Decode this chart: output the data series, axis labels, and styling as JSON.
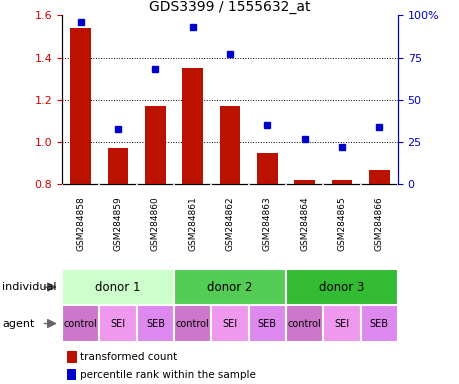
{
  "title": "GDS3399 / 1555632_at",
  "samples": [
    "GSM284858",
    "GSM284859",
    "GSM284860",
    "GSM284861",
    "GSM284862",
    "GSM284863",
    "GSM284864",
    "GSM284865",
    "GSM284866"
  ],
  "bar_values": [
    1.54,
    0.97,
    1.17,
    1.35,
    1.17,
    0.95,
    0.82,
    0.82,
    0.87
  ],
  "dot_values": [
    96,
    33,
    68,
    93,
    77,
    35,
    27,
    22,
    34
  ],
  "bar_color": "#bb1100",
  "dot_color": "#0000cc",
  "bar_baseline": 0.8,
  "ylim_left": [
    0.8,
    1.6
  ],
  "ylim_right": [
    0,
    100
  ],
  "yticks_left": [
    0.8,
    1.0,
    1.2,
    1.4,
    1.6
  ],
  "yticks_right": [
    0,
    25,
    50,
    75,
    100
  ],
  "ytick_labels_right": [
    "0",
    "25",
    "50",
    "75",
    "100%"
  ],
  "grid_values": [
    1.0,
    1.2,
    1.4
  ],
  "individuals": [
    {
      "label": "donor 1",
      "start": 0,
      "end": 3,
      "color": "#ccffcc"
    },
    {
      "label": "donor 2",
      "start": 3,
      "end": 6,
      "color": "#55cc55"
    },
    {
      "label": "donor 3",
      "start": 6,
      "end": 9,
      "color": "#33bb33"
    }
  ],
  "agents": [
    "control",
    "SEI",
    "SEB",
    "control",
    "SEI",
    "SEB",
    "control",
    "SEI",
    "SEB"
  ],
  "agent_colors": [
    "#cc77cc",
    "#ee99ee",
    "#dd88ee",
    "#cc77cc",
    "#ee99ee",
    "#dd88ee",
    "#cc77cc",
    "#ee99ee",
    "#dd88ee"
  ],
  "legend_bar_label": "transformed count",
  "legend_dot_label": "percentile rank within the sample",
  "individual_label": "individual",
  "agent_label": "agent",
  "bg_color": "#ffffff",
  "sample_area_color": "#cccccc",
  "left_axis_color": "#cc0000",
  "right_axis_color": "#0000cc"
}
